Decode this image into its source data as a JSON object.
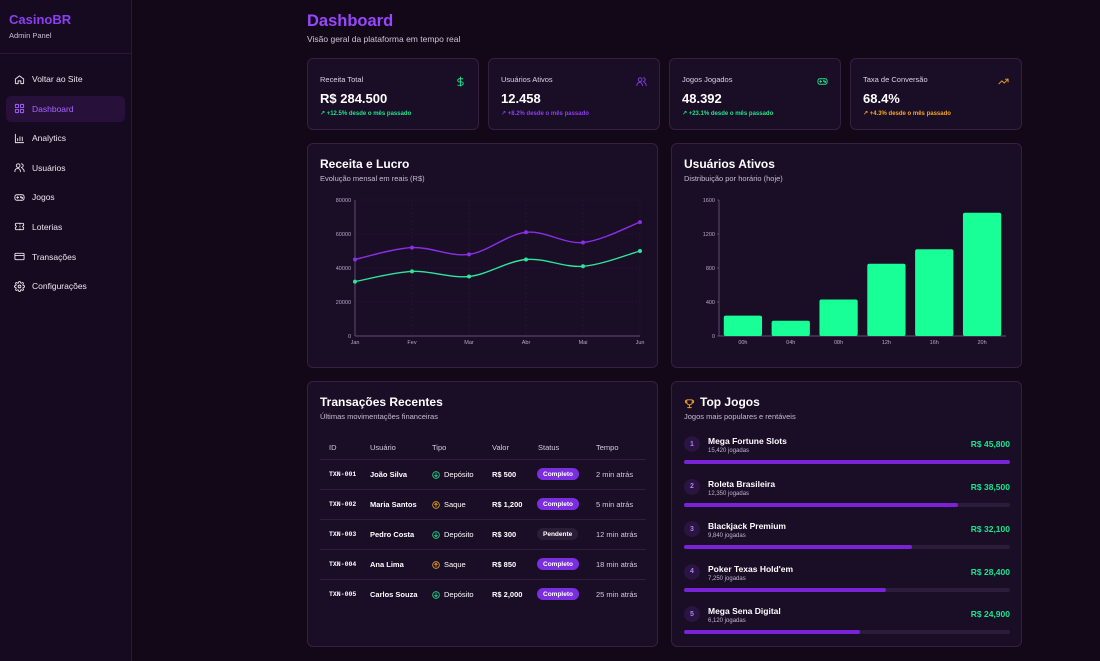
{
  "brand": {
    "name": "CasinoBR",
    "subtitle": "Admin Panel"
  },
  "sidebar": {
    "items": [
      {
        "label": "Voltar ao Site",
        "icon": "home-icon",
        "active": false
      },
      {
        "label": "Dashboard",
        "icon": "grid-icon",
        "active": true
      },
      {
        "label": "Analytics",
        "icon": "bar-chart-icon",
        "active": false
      },
      {
        "label": "Usuários",
        "icon": "users-icon",
        "active": false
      },
      {
        "label": "Jogos",
        "icon": "gamepad-icon",
        "active": false
      },
      {
        "label": "Loterias",
        "icon": "ticket-icon",
        "active": false
      },
      {
        "label": "Transações",
        "icon": "credit-card-icon",
        "active": false
      },
      {
        "label": "Configurações",
        "icon": "gear-icon",
        "active": false
      }
    ]
  },
  "header": {
    "title": "Dashboard",
    "subtitle": "Visão geral da plataforma em tempo real"
  },
  "stats": [
    {
      "label": "Receita Total",
      "value": "R$ 284.500",
      "trend": "+12.5% desde o mês passado",
      "icon": "dollar-icon",
      "color": "#19e68c"
    },
    {
      "label": "Usuários Ativos",
      "value": "12.458",
      "trend": "+8.2% desde o mês passado",
      "icon": "users-icon",
      "color": "#8b3ff2"
    },
    {
      "label": "Jogos Jogados",
      "value": "48.392",
      "trend": "+23.1% desde o mês passado",
      "icon": "gamepad-icon",
      "color": "#19e68c"
    },
    {
      "label": "Taxa de Conversão",
      "value": "68.4%",
      "trend": "+4.3% desde o mês passado",
      "icon": "trending-up-icon",
      "color": "#f5a623"
    }
  ],
  "revenue_panel": {
    "title": "Receita e Lucro",
    "subtitle": "Evolução mensal em reais (R$)"
  },
  "users_panel": {
    "title": "Usuários Ativos",
    "subtitle": "Distribuição por horário (hoje)"
  },
  "transactions": {
    "title": "Transações Recentes",
    "subtitle": "Últimas movimentações financeiras",
    "columns": [
      "ID",
      "Usuário",
      "Tipo",
      "Valor",
      "Status",
      "Tempo"
    ],
    "rows": [
      {
        "id": "TXN-001",
        "user": "João Silva",
        "type": "Depósito",
        "kind": "deposit",
        "value": "R$ 500",
        "status": "Completo",
        "time": "2 min atrás"
      },
      {
        "id": "TXN-002",
        "user": "Maria Santos",
        "type": "Saque",
        "kind": "withdraw",
        "value": "R$ 1,200",
        "status": "Completo",
        "time": "5 min atrás"
      },
      {
        "id": "TXN-003",
        "user": "Pedro Costa",
        "type": "Depósito",
        "kind": "deposit",
        "value": "R$ 300",
        "status": "Pendente",
        "time": "12 min atrás"
      },
      {
        "id": "TXN-004",
        "user": "Ana Lima",
        "type": "Saque",
        "kind": "withdraw",
        "value": "R$ 850",
        "status": "Completo",
        "time": "18 min atrás"
      },
      {
        "id": "TXN-005",
        "user": "Carlos Souza",
        "type": "Depósito",
        "kind": "deposit",
        "value": "R$ 2,000",
        "status": "Completo",
        "time": "25 min atrás"
      }
    ]
  },
  "top_games": {
    "title": "Top Jogos",
    "subtitle": "Jogos mais populares e rentáveis",
    "icon": "trophy-icon",
    "items": [
      {
        "rank": "1",
        "name": "Mega Fortune Slots",
        "plays": "15,420 jogadas",
        "revenue": "R$ 45,800",
        "share": 1.0
      },
      {
        "rank": "2",
        "name": "Roleta Brasileira",
        "plays": "12,350 jogadas",
        "revenue": "R$ 38,500",
        "share": 0.84
      },
      {
        "rank": "3",
        "name": "Blackjack Premium",
        "plays": "9,840 jogadas",
        "revenue": "R$ 32,100",
        "share": 0.7
      },
      {
        "rank": "4",
        "name": "Poker Texas Hold'em",
        "plays": "7,250 jogadas",
        "revenue": "R$ 28,400",
        "share": 0.62
      },
      {
        "rank": "5",
        "name": "Mega Sena Digital",
        "plays": "6,120 jogadas",
        "revenue": "R$ 24,900",
        "share": 0.54
      }
    ]
  },
  "chart_data": [
    {
      "type": "line",
      "x": [
        "Jan",
        "Fev",
        "Mar",
        "Abr",
        "Mai",
        "Jun"
      ],
      "series": [
        {
          "values": [
            45000,
            52000,
            48000,
            61000,
            55000,
            67000
          ],
          "color": "#8b2fe6"
        },
        {
          "values": [
            32000,
            38000,
            35000,
            45000,
            41000,
            50000
          ],
          "color": "#2ee59d"
        }
      ],
      "yticks": [
        0,
        20000,
        40000,
        60000,
        80000
      ],
      "ylim": [
        0,
        80000
      ],
      "grid": true
    },
    {
      "type": "bar",
      "categories": [
        "00h",
        "04h",
        "08h",
        "12h",
        "16h",
        "20h"
      ],
      "values": [
        240,
        180,
        430,
        850,
        1020,
        1450
      ],
      "color": "#18ff98",
      "yticks": [
        0,
        400,
        800,
        1200,
        1600
      ],
      "ylim": [
        0,
        1600
      ],
      "grid": false
    }
  ]
}
